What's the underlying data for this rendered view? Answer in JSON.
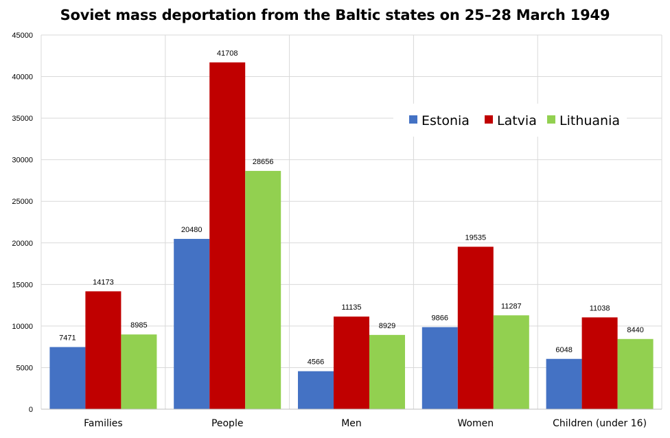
{
  "chart_data": {
    "type": "bar",
    "title": "Soviet mass deportation from the Baltic states on 25–28 March 1949",
    "xlabel": "",
    "ylabel": "",
    "categories": [
      "Families",
      "People",
      "Men",
      "Women",
      "Children (under 16)"
    ],
    "series": [
      {
        "name": "Estonia",
        "color": "#4472C4",
        "values": [
          7471,
          20480,
          4566,
          9866,
          6048
        ]
      },
      {
        "name": "Latvia",
        "color": "#C00000",
        "values": [
          14173,
          41708,
          11135,
          19535,
          11038
        ]
      },
      {
        "name": "Lithuania",
        "color": "#92D050",
        "values": [
          8985,
          28656,
          8929,
          11287,
          8440
        ]
      }
    ],
    "ylim": [
      0,
      45000
    ],
    "yticks": [
      0,
      5000,
      10000,
      15000,
      20000,
      25000,
      30000,
      35000,
      40000,
      45000
    ],
    "grid": true,
    "legend_position": "top-right",
    "data_labels": true
  }
}
